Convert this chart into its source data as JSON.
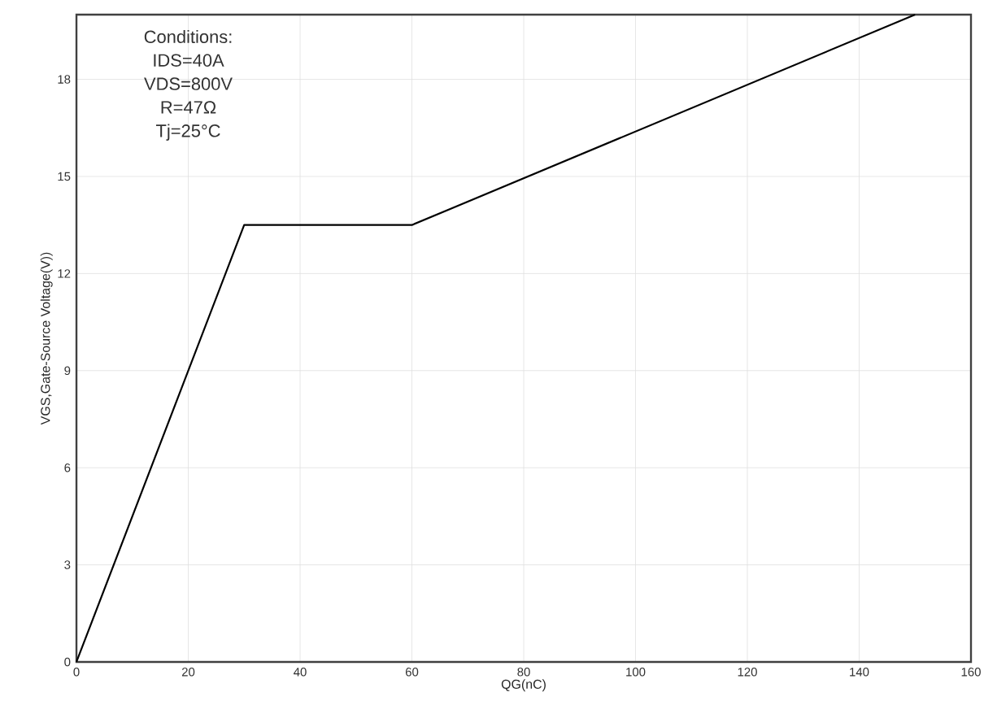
{
  "chart_data": {
    "type": "line",
    "xlabel": "QG(nC)",
    "ylabel": "VGS,Gate-Source Voltage(V))",
    "annotations": [
      "Conditions:",
      "IDS=40A",
      "VDS=800V",
      "R=47Ω",
      "Tj=25°C"
    ],
    "x": [
      0,
      30,
      60,
      150
    ],
    "values": [
      0,
      13.5,
      13.5,
      20
    ],
    "color": "#000000",
    "xlim": [
      0,
      160
    ],
    "xticks": [
      0,
      20,
      40,
      60,
      80,
      100,
      120,
      140,
      160
    ],
    "ylim": [
      0,
      20
    ],
    "yticks": [
      0,
      3,
      6,
      9,
      12,
      15,
      18
    ],
    "grid": true
  }
}
